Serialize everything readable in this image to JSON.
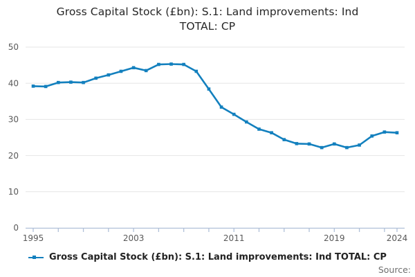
{
  "title": {
    "line1": "Gross Capital Stock (£bn): S.1: Land improvements: Ind",
    "line2": "TOTAL: CP"
  },
  "legend": {
    "label": "Gross Capital Stock (£bn): S.1: Land improvements: Ind TOTAL: CP"
  },
  "source": {
    "label": "Source:"
  },
  "colors": {
    "line": "#1380be",
    "grid": "#e6e6e6",
    "axis": "#b0c0d8",
    "tick_label": "#595959",
    "title": "#262626",
    "legend_text": "#222222",
    "source_text": "#6e6e6e"
  },
  "chart_data": {
    "type": "line",
    "title": "Gross Capital Stock (£bn): S.1: Land improvements: Ind TOTAL: CP",
    "xlabel": "",
    "ylabel": "",
    "x": [
      1995,
      1996,
      1997,
      1998,
      1999,
      2000,
      2001,
      2002,
      2003,
      2004,
      2005,
      2006,
      2007,
      2008,
      2009,
      2010,
      2011,
      2012,
      2013,
      2014,
      2015,
      2016,
      2017,
      2018,
      2019,
      2020,
      2021,
      2022,
      2023,
      2024
    ],
    "series": [
      {
        "name": "Gross Capital Stock (£bn): S.1: Land improvements: Ind TOTAL: CP",
        "values": [
          39.2,
          39.1,
          40.2,
          40.3,
          40.2,
          41.4,
          42.3,
          43.3,
          44.3,
          43.5,
          45.2,
          45.3,
          45.2,
          43.3,
          38.4,
          33.4,
          31.4,
          29.3,
          27.3,
          26.3,
          24.4,
          23.3,
          23.2,
          22.2,
          23.2,
          22.2,
          22.9,
          25.4,
          26.5,
          26.3
        ]
      }
    ],
    "ylim": [
      0,
      50
    ],
    "yticks": [
      0,
      10,
      20,
      30,
      40,
      50
    ],
    "xtick_labels": [
      1995,
      2003,
      2011,
      2019,
      2024
    ],
    "xtick_minor_step": 2,
    "grid": true,
    "legend_position": "bottom"
  }
}
